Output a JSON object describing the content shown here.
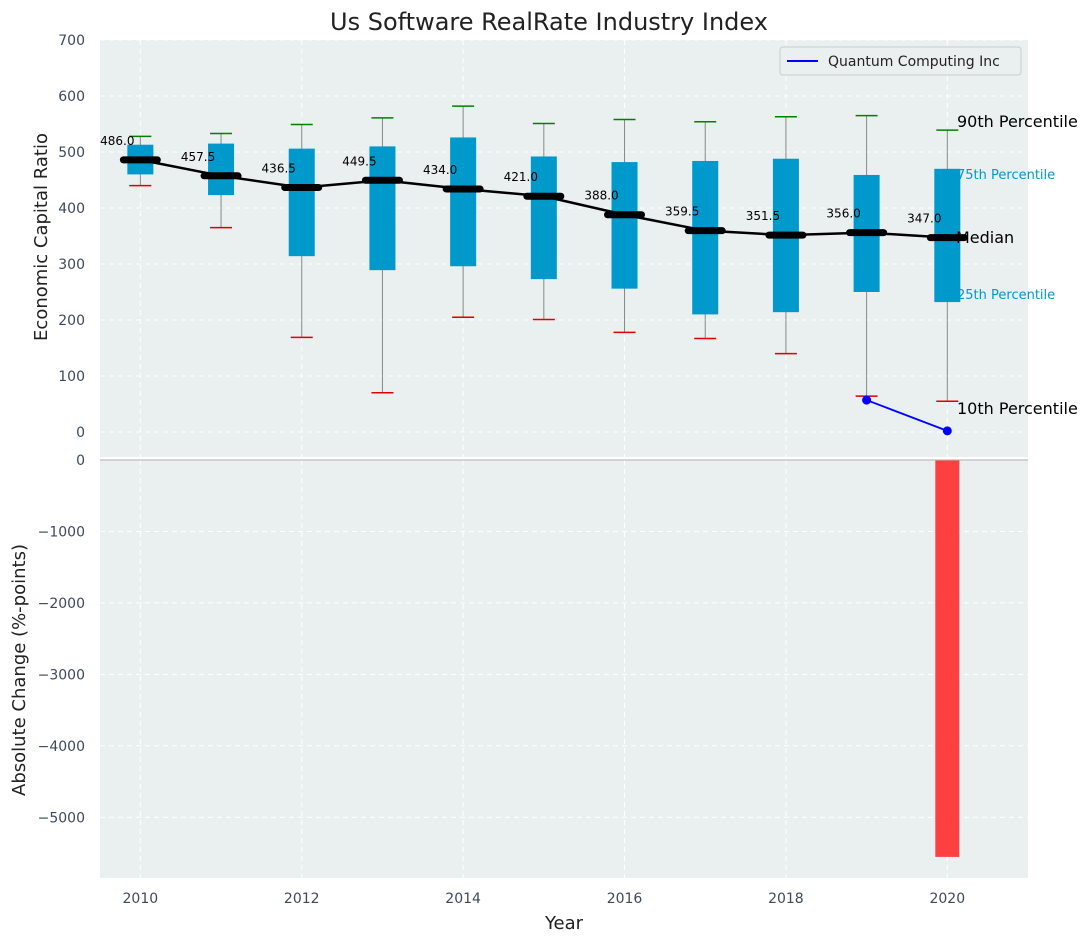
{
  "chart_data": [
    {
      "type": "box",
      "title": "Us Software RealRate Industry Index",
      "ylabel": "Economic Capital Ratio",
      "ylim": [
        0,
        700
      ],
      "y_ticks": [
        "0",
        "100",
        "200",
        "300",
        "400",
        "500",
        "600",
        "700"
      ],
      "grid": true,
      "legend_position": "top-right",
      "categories": [
        2010,
        2011,
        2012,
        2013,
        2014,
        2015,
        2016,
        2017,
        2018,
        2019,
        2020
      ],
      "percentiles": {
        "p90": [
          528,
          533,
          549,
          561,
          582,
          551,
          558,
          554,
          563,
          565,
          539
        ],
        "p75": [
          513,
          515,
          506,
          510,
          526,
          492,
          482,
          484,
          488,
          459,
          470
        ],
        "median": [
          486.0,
          457.5,
          436.5,
          449.5,
          434.0,
          421.0,
          388.0,
          359.5,
          351.5,
          356.0,
          347.0
        ],
        "p25": [
          460,
          423,
          314,
          289,
          296,
          273,
          256,
          210,
          214,
          250,
          232
        ],
        "p10": [
          440,
          365,
          169,
          70,
          205,
          201,
          178,
          167,
          140,
          64,
          55
        ]
      },
      "median_labels": [
        "486.0",
        "457.5",
        "436.5",
        "449.5",
        "434.0",
        "421.0",
        "388.0",
        "359.5",
        "351.5",
        "356.0",
        "347.0"
      ],
      "series": [
        {
          "name": "Quantum Computing Inc",
          "x": [
            2019,
            2020
          ],
          "values": [
            57,
            2
          ],
          "color": "#0000ff"
        }
      ],
      "annotations": {
        "p90": "90th Percentile",
        "p75": "75th Percentile",
        "median": "Median",
        "p25": "25th Percentile",
        "p10": "10th Percentile"
      },
      "colors": {
        "box": "#0099cc",
        "median_line": "#000000",
        "whisker": "#888888",
        "p90_cap": "#008000",
        "p10_cap": "#dd0000",
        "background": "#eaeff0"
      }
    },
    {
      "type": "bar",
      "xlabel": "Year",
      "ylabel": "Absolute Change (%-points)",
      "ylim": [
        -5850,
        0
      ],
      "y_ticks": [
        "0",
        "−1000",
        "−2000",
        "−3000",
        "−4000",
        "−5000"
      ],
      "x_ticks": [
        "2010",
        "2012",
        "2014",
        "2016",
        "2018",
        "2020"
      ],
      "xlim": [
        2009.5,
        2021
      ],
      "categories": [
        2020
      ],
      "values": [
        -5555
      ],
      "colors": {
        "bar": "#ff4040"
      }
    }
  ]
}
